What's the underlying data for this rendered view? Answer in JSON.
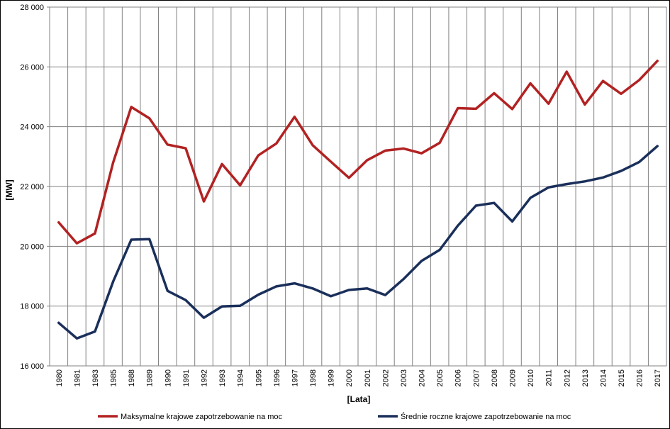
{
  "chart_data": {
    "type": "line",
    "xlabel": "[Lata]",
    "ylabel": "[MW]",
    "ylim": [
      16000,
      28000
    ],
    "yticks": [
      16000,
      18000,
      20000,
      22000,
      24000,
      26000,
      28000
    ],
    "ytick_labels": [
      "16 000",
      "18 000",
      "20 000",
      "22 000",
      "24 000",
      "26 000",
      "28 000"
    ],
    "grid": true,
    "legend_position": "bottom",
    "categories": [
      "1980",
      "1981",
      "1983",
      "1985",
      "1988",
      "1989",
      "1990",
      "1991",
      "1992",
      "1993",
      "1994",
      "1995",
      "1996",
      "1997",
      "1998",
      "1999",
      "2000",
      "2001",
      "2002",
      "2003",
      "2004",
      "2005",
      "2006",
      "2007",
      "2008",
      "2009",
      "2010",
      "2011",
      "2012",
      "2013",
      "2014",
      "2015",
      "2016",
      "2017"
    ],
    "series": [
      {
        "name": "Maksymalne krajowe zapotrzebowanie na moc",
        "color": "#b22222",
        "values": [
          20800,
          20100,
          20430,
          22800,
          24660,
          24280,
          23400,
          23280,
          21500,
          22750,
          22040,
          23040,
          23440,
          24330,
          23380,
          22830,
          22290,
          22880,
          23200,
          23270,
          23110,
          23460,
          24620,
          24600,
          25120,
          24590,
          25450,
          24770,
          25840,
          24740,
          25530,
          25100,
          25560,
          26200
        ]
      },
      {
        "name": "Średnie roczne krajowe zapotrzebowanie na moc",
        "color": "#1a2f5a",
        "values": [
          17440,
          16920,
          17150,
          18820,
          20220,
          20240,
          18510,
          18200,
          17610,
          17990,
          18010,
          18380,
          18660,
          18760,
          18590,
          18330,
          18540,
          18590,
          18370,
          18900,
          19510,
          19880,
          20690,
          21360,
          21450,
          20830,
          21620,
          21970,
          22080,
          22170,
          22300,
          22520,
          22820,
          23350
        ]
      }
    ]
  }
}
